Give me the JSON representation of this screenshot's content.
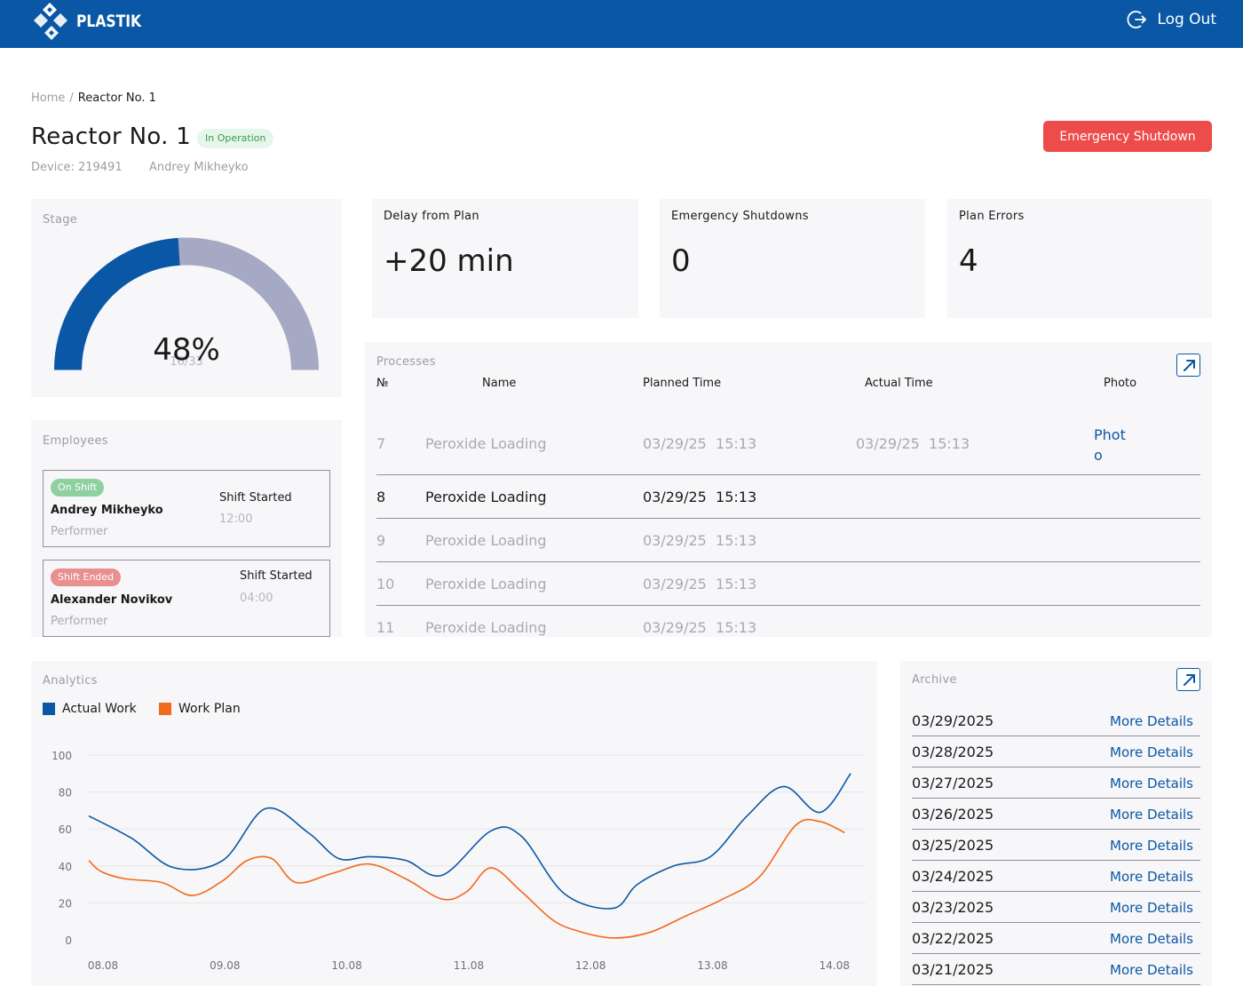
{
  "header": {
    "brand": "PLASTIK",
    "logout_label": "Log Out"
  },
  "breadcrumb": {
    "home": "Home",
    "separator": "/",
    "current": "Reactor No. 1"
  },
  "reactor": {
    "title": "Reactor No. 1",
    "status": "In Operation",
    "device": "Device: 219491",
    "owner": "Andrey Mikheyko",
    "emergency_button": "Emergency Shutdown"
  },
  "stage": {
    "label": "Stage",
    "percent_text": "48%",
    "progress_fraction": 0.48,
    "steps_text": "16/33"
  },
  "kpis": [
    {
      "label": "Delay from Plan",
      "value": "+20 min"
    },
    {
      "label": "Emergency Shutdowns",
      "value": "0"
    },
    {
      "label": "Plan Errors",
      "value": "4"
    }
  ],
  "employees": {
    "label": "Employees",
    "items": [
      {
        "badge": "On Shift",
        "name": "Andrey Mikheyko",
        "role": "Performer",
        "shift_label": "Shift Started",
        "shift_time": "12:00"
      },
      {
        "badge": "Shift Ended",
        "name": "Alexander Novikov",
        "role": "Performer",
        "shift_label": "Shift Started",
        "shift_time": "04:00"
      }
    ]
  },
  "processes": {
    "label": "Processes",
    "columns": {
      "number": "№",
      "name": "Name",
      "planned": "Planned Time",
      "actual": "Actual Time",
      "photo": "Photo"
    },
    "rows": [
      {
        "number": "7",
        "name": "Peroxide Loading",
        "planned": "03/29/25  15:13",
        "actual": "03/29/25  15:13",
        "photo": "Photo"
      },
      {
        "number": "8",
        "name": "Peroxide Loading",
        "planned": "03/29/25  15:13",
        "actual": "",
        "photo": ""
      },
      {
        "number": "9",
        "name": "Peroxide Loading",
        "planned": "03/29/25  15:13",
        "actual": "",
        "photo": ""
      },
      {
        "number": "10",
        "name": "Peroxide Loading",
        "planned": "03/29/25  15:13",
        "actual": "",
        "photo": ""
      },
      {
        "number": "11",
        "name": "Peroxide Loading",
        "planned": "03/29/25  15:13",
        "actual": "",
        "photo": ""
      }
    ]
  },
  "analytics": {
    "label": "Analytics",
    "legend": {
      "actual": "Actual Work",
      "plan": "Work Plan"
    },
    "colors": {
      "actual": "#0a58a5",
      "plan": "#f26a1b"
    }
  },
  "chart_data": {
    "type": "line",
    "x_ticks": [
      "08.08",
      "09.08",
      "10.08",
      "11.08",
      "12.08",
      "13.08",
      "14.08"
    ],
    "y_ticks": [
      "100",
      "80",
      "60",
      "40",
      "20",
      "0"
    ],
    "ylim": [
      0,
      100
    ],
    "series": [
      {
        "name": "Actual Work",
        "color": "#0a58a5",
        "x": [
          0,
          0.35,
          0.7,
          1.1,
          1.45,
          1.8,
          2.05,
          2.3,
          2.6,
          2.9,
          3.3,
          3.55,
          3.9,
          4.3,
          4.5,
          4.8,
          5.1,
          5.4,
          5.7,
          6.0,
          6.25
        ],
        "y": [
          67,
          55,
          39,
          43,
          71,
          58,
          44,
          45,
          43,
          35,
          59,
          56,
          25,
          17,
          30,
          40,
          45,
          67,
          83,
          69,
          90
        ]
      },
      {
        "name": "Work Plan",
        "color": "#f26a1b",
        "x": [
          0,
          0.1,
          0.3,
          0.6,
          0.85,
          1.1,
          1.3,
          1.5,
          1.7,
          2.0,
          2.3,
          2.6,
          2.9,
          3.1,
          3.3,
          3.55,
          3.8,
          4.0,
          4.3,
          4.6,
          4.9,
          5.2,
          5.5,
          5.8,
          6.0,
          6.2
        ],
        "y": [
          43,
          37,
          33,
          31,
          24,
          32,
          43,
          44,
          31,
          36,
          41,
          33,
          22,
          26,
          39,
          26,
          11,
          5,
          1,
          4,
          13,
          22,
          34,
          62,
          64,
          58
        ]
      }
    ],
    "grid": true,
    "legend_position": "top-left"
  },
  "archive": {
    "label": "Archive",
    "link_label": "More Details",
    "dates": [
      "03/29/2025",
      "03/28/2025",
      "03/27/2025",
      "03/26/2025",
      "03/25/2025",
      "03/24/2025",
      "03/23/2025",
      "03/22/2025",
      "03/21/2025"
    ]
  }
}
